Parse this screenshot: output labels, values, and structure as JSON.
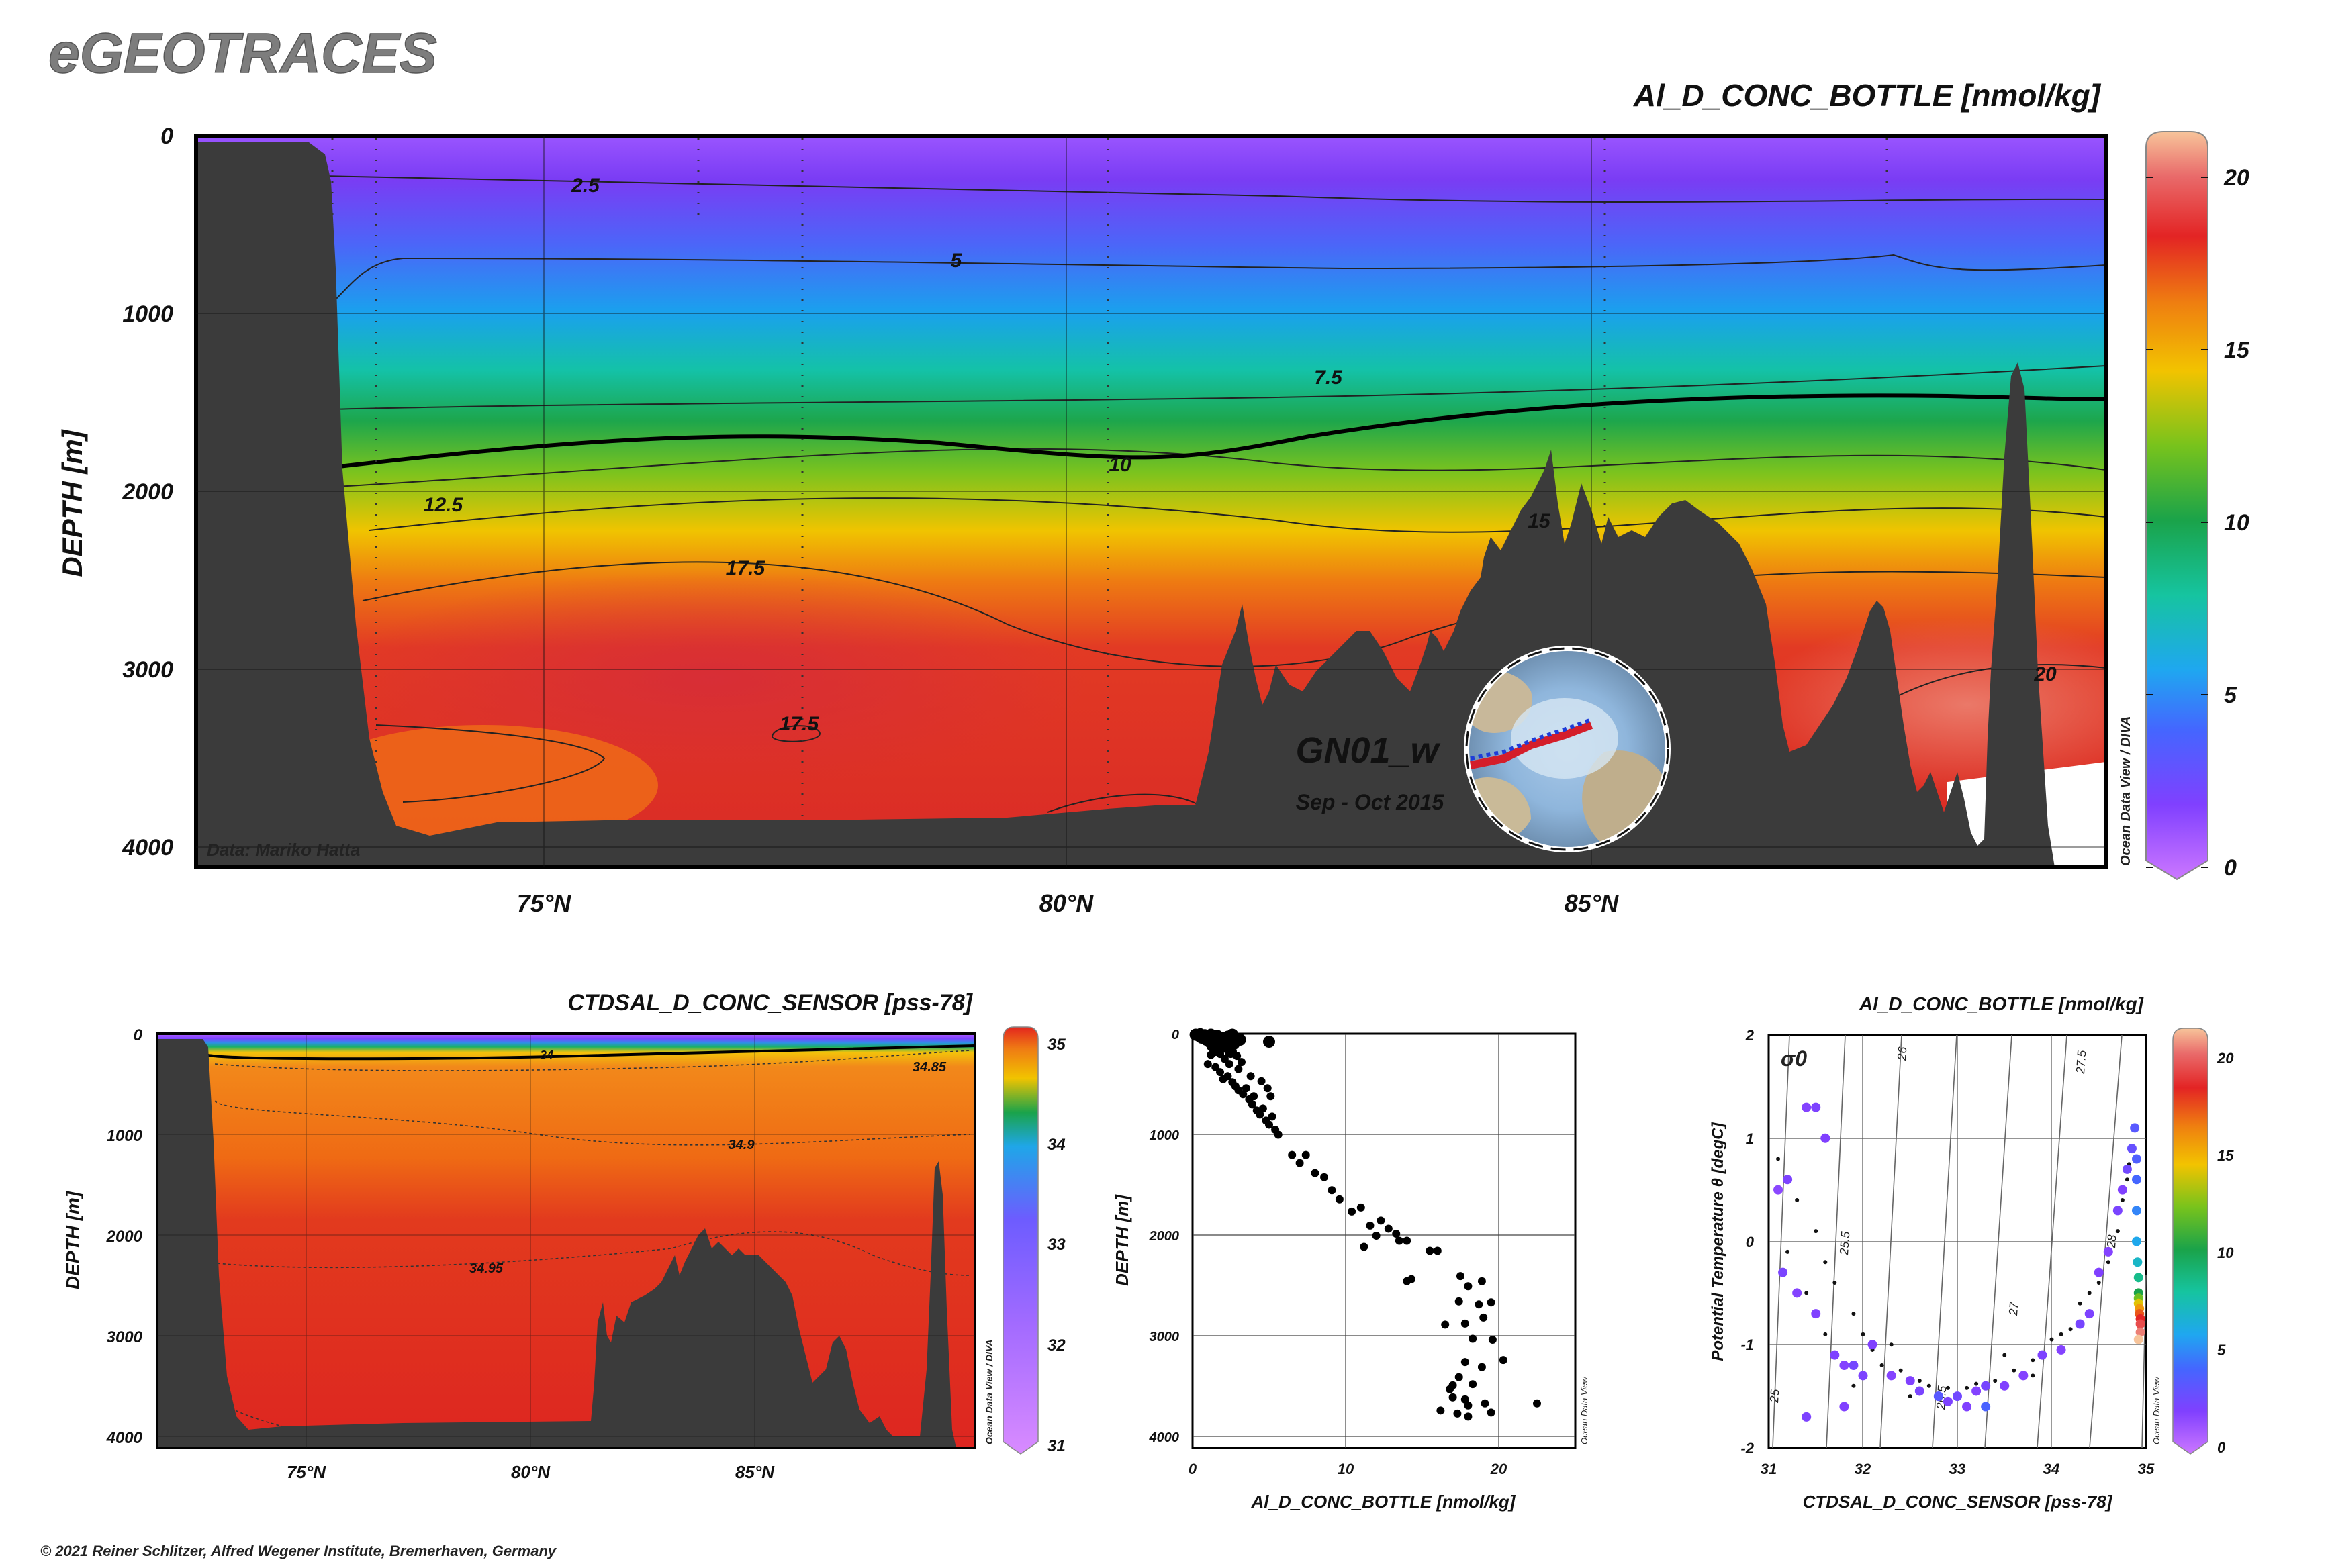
{
  "header": {
    "logo": "eGEOTRACES"
  },
  "footer": {
    "copyright": "© 2021 Reiner Schlitzer, Alfred Wegener Institute, Bremerhaven, Germany"
  },
  "colors": {
    "terrain": "#3b3b3b",
    "frame": "#000000"
  },
  "chart_data": [
    {
      "id": "main-section",
      "type": "heatmap",
      "title": "Al_D_CONC_BOTTLE [nmol/kg]",
      "ylabel": "DEPTH [m]",
      "xlabel": "",
      "x_ticks": [
        "75°N",
        "80°N",
        "85°N"
      ],
      "x_tick_values": [
        75,
        80,
        85
      ],
      "xlim": [
        71.8,
        89.9
      ],
      "y_ticks": [
        "0",
        "1000",
        "2000",
        "3000",
        "4000"
      ],
      "y_tick_values": [
        0,
        1000,
        2000,
        3000,
        4000
      ],
      "ylim": [
        0,
        4100
      ],
      "colorbar": {
        "ticks": [
          "0",
          "5",
          "10",
          "15",
          "20"
        ],
        "values": [
          0,
          5,
          10,
          15,
          20
        ],
        "range": [
          0,
          21
        ]
      },
      "contour_labels": [
        "2.5",
        "5",
        "7.5",
        "10",
        "12.5",
        "17.5",
        "17.5",
        "15",
        "20"
      ],
      "data_credit": "Data: Mariko Hatta",
      "section_name": "GN01_w",
      "section_dates": "Sep - Oct 2015",
      "watermark": "Ocean Data View / DIVA"
    },
    {
      "id": "salinity-section",
      "type": "heatmap",
      "title": "CTDSAL_D_CONC_SENSOR [pss-78]",
      "ylabel": "DEPTH [m]",
      "x_ticks": [
        "75°N",
        "80°N",
        "85°N"
      ],
      "x_tick_values": [
        75,
        80,
        85
      ],
      "xlim": [
        71.8,
        89.9
      ],
      "y_ticks": [
        "0",
        "1000",
        "2000",
        "3000",
        "4000"
      ],
      "y_tick_values": [
        0,
        1000,
        2000,
        3000,
        4000
      ],
      "ylim": [
        0,
        4100
      ],
      "colorbar": {
        "ticks": [
          "35",
          "34",
          "33",
          "32",
          "31"
        ],
        "values": [
          35,
          34,
          33,
          32,
          31
        ],
        "range": [
          31,
          35
        ]
      },
      "contour_labels": [
        "34",
        "34.85",
        "34.9",
        "34.95"
      ],
      "watermark": "Ocean Data View / DIVA"
    },
    {
      "id": "profile-scatter",
      "type": "scatter",
      "xlabel": "Al_D_CONC_BOTTLE [nmol/kg]",
      "ylabel": "DEPTH [m]",
      "x_ticks": [
        "0",
        "10",
        "20"
      ],
      "x_tick_values": [
        0,
        10,
        20
      ],
      "xlim": [
        0,
        25
      ],
      "y_ticks": [
        "0",
        "1000",
        "2000",
        "3000",
        "4000"
      ],
      "y_tick_values": [
        0,
        1000,
        2000,
        3000,
        4000
      ],
      "ylim": [
        0,
        4100
      ],
      "watermark": "Ocean Data View",
      "points": [
        [
          0.2,
          10
        ],
        [
          0.4,
          20
        ],
        [
          0.5,
          5
        ],
        [
          0.6,
          40
        ],
        [
          0.8,
          15
        ],
        [
          0.9,
          60
        ],
        [
          1.0,
          30
        ],
        [
          1.1,
          80
        ],
        [
          1.2,
          10
        ],
        [
          1.3,
          120
        ],
        [
          1.4,
          50
        ],
        [
          1.5,
          160
        ],
        [
          1.6,
          20
        ],
        [
          1.7,
          90
        ],
        [
          1.8,
          200
        ],
        [
          1.9,
          40
        ],
        [
          2.0,
          130
        ],
        [
          2.1,
          250
        ],
        [
          2.2,
          70
        ],
        [
          2.3,
          30
        ],
        [
          2.4,
          300
        ],
        [
          2.5,
          180
        ],
        [
          2.6,
          10
        ],
        [
          2.7,
          100
        ],
        [
          2.9,
          220
        ],
        [
          3.0,
          350
        ],
        [
          3.1,
          60
        ],
        [
          3.2,
          280
        ],
        [
          1.0,
          300
        ],
        [
          1.2,
          210
        ],
        [
          1.5,
          330
        ],
        [
          1.8,
          380
        ],
        [
          2.0,
          450
        ],
        [
          2.3,
          420
        ],
        [
          2.6,
          480
        ],
        [
          2.8,
          520
        ],
        [
          3.0,
          560
        ],
        [
          3.3,
          600
        ],
        [
          3.5,
          540
        ],
        [
          3.7,
          650
        ],
        [
          3.9,
          700
        ],
        [
          4.0,
          620
        ],
        [
          4.2,
          760
        ],
        [
          4.4,
          800
        ],
        [
          4.6,
          740
        ],
        [
          4.8,
          860
        ],
        [
          5.0,
          900
        ],
        [
          5.2,
          820
        ],
        [
          5.4,
          950
        ],
        [
          5.6,
          1000
        ],
        [
          5.1,
          620
        ],
        [
          4.9,
          540
        ],
        [
          4.5,
          470
        ],
        [
          3.8,
          420
        ],
        [
          5.0,
          80
        ],
        [
          6.5,
          1200
        ],
        [
          7.0,
          1280
        ],
        [
          7.4,
          1200
        ],
        [
          8.0,
          1380
        ],
        [
          8.6,
          1420
        ],
        [
          9.1,
          1550
        ],
        [
          9.6,
          1640
        ],
        [
          10.4,
          1760
        ],
        [
          11.0,
          1720
        ],
        [
          11.6,
          1900
        ],
        [
          12.3,
          1850
        ],
        [
          12.8,
          1930
        ],
        [
          13.3,
          1980
        ],
        [
          12.0,
          2000
        ],
        [
          11.2,
          2110
        ],
        [
          13.5,
          2050
        ],
        [
          14.0,
          2050
        ],
        [
          15.5,
          2150
        ],
        [
          16.0,
          2150
        ],
        [
          14.3,
          2430
        ],
        [
          14.0,
          2450
        ],
        [
          17.5,
          2400
        ],
        [
          18.0,
          2500
        ],
        [
          18.9,
          2450
        ],
        [
          17.4,
          2650
        ],
        [
          18.7,
          2680
        ],
        [
          19.5,
          2660
        ],
        [
          16.5,
          2880
        ],
        [
          17.8,
          2870
        ],
        [
          19.0,
          2810
        ],
        [
          18.3,
          3020
        ],
        [
          19.6,
          3030
        ],
        [
          20.3,
          3230
        ],
        [
          17.8,
          3250
        ],
        [
          18.9,
          3300
        ],
        [
          17.4,
          3400
        ],
        [
          17.0,
          3480
        ],
        [
          18.3,
          3470
        ],
        [
          16.8,
          3520
        ],
        [
          17.0,
          3600
        ],
        [
          17.8,
          3620
        ],
        [
          19.1,
          3660
        ],
        [
          18.0,
          3680
        ],
        [
          16.2,
          3730
        ],
        [
          17.3,
          3760
        ],
        [
          18.0,
          3790
        ],
        [
          19.5,
          3750
        ],
        [
          22.5,
          3660
        ]
      ]
    },
    {
      "id": "ts-diagram",
      "type": "scatter",
      "title": "Al_D_CONC_BOTTLE [nmol/kg]",
      "xlabel": "CTDSAL_D_CONC_SENSOR [pss-78]",
      "ylabel": "Potential Temperature θ [degC]",
      "x_ticks": [
        "31",
        "32",
        "33",
        "34",
        "35"
      ],
      "x_tick_values": [
        31,
        32,
        33,
        34,
        35
      ],
      "xlim": [
        31,
        35
      ],
      "y_ticks": [
        "2",
        "1",
        "0",
        "-1",
        "-2"
      ],
      "y_tick_values": [
        2,
        1,
        0,
        -1,
        -2
      ],
      "ylim": [
        -2,
        2
      ],
      "density_label": "σ0",
      "isopycnal_labels": [
        "25",
        "25.5",
        "26",
        "26.5",
        "27",
        "27.5",
        "28"
      ],
      "colorbar": {
        "ticks": [
          "20",
          "15",
          "10",
          "5",
          "0"
        ],
        "values": [
          20,
          15,
          10,
          5,
          0
        ],
        "range": [
          0,
          21
        ]
      },
      "watermark": "Ocean Data View",
      "points": [
        [
          31.4,
          1.3,
          2.0
        ],
        [
          31.5,
          1.3,
          2.2
        ],
        [
          31.6,
          1.0,
          2.1
        ],
        [
          31.1,
          0.5,
          1.8
        ],
        [
          31.15,
          -0.3,
          2.3
        ],
        [
          31.3,
          -0.5,
          2.0
        ],
        [
          31.5,
          -0.7,
          2.1
        ],
        [
          31.7,
          -1.1,
          2.2
        ],
        [
          31.8,
          -1.2,
          2.0
        ],
        [
          31.9,
          -1.2,
          2.5
        ],
        [
          32.0,
          -1.3,
          2.2
        ],
        [
          32.1,
          -1.0,
          2.1
        ],
        [
          32.3,
          -1.3,
          2.0
        ],
        [
          32.5,
          -1.35,
          2.1
        ],
        [
          32.6,
          -1.45,
          2.3
        ],
        [
          32.8,
          -1.5,
          2.0
        ],
        [
          32.9,
          -1.55,
          2.2
        ],
        [
          33.0,
          -1.5,
          2.6
        ],
        [
          33.1,
          -1.6,
          2.1
        ],
        [
          33.2,
          -1.45,
          2.0
        ],
        [
          33.3,
          -1.4,
          2.4
        ],
        [
          33.5,
          -1.4,
          2.1
        ],
        [
          33.7,
          -1.3,
          2.0
        ],
        [
          33.9,
          -1.1,
          2.2
        ],
        [
          34.1,
          -1.05,
          2.0
        ],
        [
          34.3,
          -0.8,
          2.4
        ],
        [
          34.4,
          -0.7,
          2.2
        ],
        [
          34.5,
          -0.3,
          2.1
        ],
        [
          34.6,
          -0.1,
          2.0
        ],
        [
          34.7,
          0.3,
          2.3
        ],
        [
          34.75,
          0.5,
          2.1
        ],
        [
          34.8,
          0.7,
          2.6
        ],
        [
          34.85,
          0.9,
          3.0
        ],
        [
          34.88,
          1.1,
          3.5
        ],
        [
          34.9,
          0.8,
          3.8
        ],
        [
          34.9,
          0.6,
          4.2
        ],
        [
          34.9,
          0.3,
          5.0
        ],
        [
          34.9,
          0.0,
          6.0
        ],
        [
          34.91,
          -0.2,
          7.0
        ],
        [
          34.92,
          -0.35,
          8.5
        ],
        [
          34.92,
          -0.5,
          10.0
        ],
        [
          34.92,
          -0.55,
          12.0
        ],
        [
          34.92,
          -0.6,
          14.0
        ],
        [
          34.93,
          -0.65,
          15.5
        ],
        [
          34.93,
          -0.7,
          17.0
        ],
        [
          34.94,
          -0.75,
          18.0
        ],
        [
          34.94,
          -0.8,
          19.0
        ],
        [
          34.94,
          -0.88,
          20.0
        ],
        [
          34.92,
          -0.95,
          21.0
        ],
        [
          31.2,
          0.6,
          2.2
        ],
        [
          31.4,
          -1.7,
          2.2
        ],
        [
          31.8,
          -1.6,
          2.1
        ],
        [
          32.8,
          -1.5,
          3.5
        ],
        [
          33.3,
          -1.6,
          4.0
        ]
      ],
      "small_points": [
        [
          31.1,
          0.8
        ],
        [
          31.3,
          0.4
        ],
        [
          31.5,
          0.1
        ],
        [
          31.6,
          -0.2
        ],
        [
          31.7,
          -0.4
        ],
        [
          31.9,
          -0.7
        ],
        [
          32.0,
          -0.9
        ],
        [
          32.1,
          -1.05
        ],
        [
          32.2,
          -1.2
        ],
        [
          32.4,
          -1.25
        ],
        [
          32.6,
          -1.35
        ],
        [
          32.7,
          -1.4
        ],
        [
          32.9,
          -1.42
        ],
        [
          33.1,
          -1.42
        ],
        [
          33.2,
          -1.38
        ],
        [
          33.4,
          -1.35
        ],
        [
          33.6,
          -1.25
        ],
        [
          33.8,
          -1.15
        ],
        [
          34.0,
          -0.95
        ],
        [
          34.2,
          -0.85
        ],
        [
          34.3,
          -0.6
        ],
        [
          34.5,
          -0.4
        ],
        [
          34.6,
          -0.2
        ],
        [
          34.7,
          0.1
        ],
        [
          34.75,
          0.4
        ],
        [
          34.8,
          0.6
        ],
        [
          34.82,
          0.75
        ],
        [
          31.2,
          -0.1
        ],
        [
          31.4,
          -0.5
        ],
        [
          31.6,
          -0.9
        ],
        [
          32.3,
          -1.0
        ],
        [
          33.5,
          -1.1
        ],
        [
          34.1,
          -0.9
        ],
        [
          34.4,
          -0.5
        ],
        [
          31.9,
          -1.4
        ],
        [
          32.5,
          -1.5
        ],
        [
          33.8,
          -1.3
        ]
      ]
    }
  ]
}
